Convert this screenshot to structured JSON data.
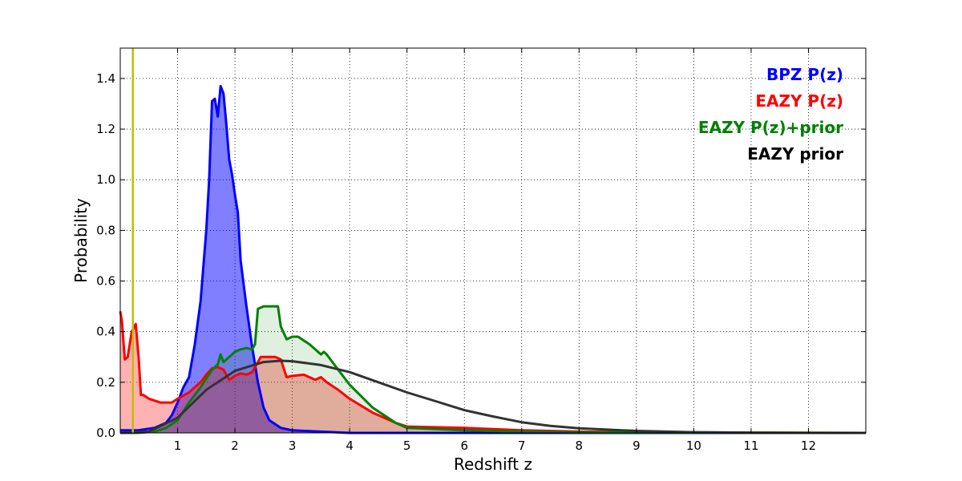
{
  "chart_data": {
    "type": "area",
    "xlabel": "Redshift z",
    "ylabel": "Probability",
    "xlim": [
      0,
      13
    ],
    "ylim": [
      0,
      1.52
    ],
    "x_ticks": [
      1,
      2,
      3,
      4,
      5,
      6,
      7,
      8,
      9,
      10,
      11,
      12
    ],
    "y_ticks": [
      0.0,
      0.2,
      0.4,
      0.6,
      0.8,
      1.0,
      1.2,
      1.4
    ],
    "x_tick_labels": [
      "1",
      "2",
      "3",
      "4",
      "5",
      "6",
      "7",
      "8",
      "9",
      "10",
      "11",
      "12"
    ],
    "y_tick_labels": [
      "0.0",
      "0.2",
      "0.4",
      "0.6",
      "0.8",
      "1.0",
      "1.2",
      "1.4"
    ],
    "grid": true,
    "legend_position": "top-right",
    "vertical_line": {
      "x": 0.22,
      "color": "#bfbf00"
    },
    "series": [
      {
        "name": "BPZ P(z)",
        "color": "#0000ff",
        "fill": "#0000ff",
        "fill_opacity": 0.5,
        "x": [
          0,
          0.3,
          0.6,
          0.8,
          0.9,
          1.0,
          1.1,
          1.2,
          1.3,
          1.4,
          1.5,
          1.55,
          1.6,
          1.65,
          1.7,
          1.75,
          1.8,
          1.85,
          1.9,
          1.95,
          2.0,
          2.05,
          2.1,
          2.2,
          2.3,
          2.4,
          2.5,
          2.6,
          2.8,
          3.0,
          4,
          6,
          13
        ],
        "y": [
          0.01,
          0.01,
          0.02,
          0.04,
          0.07,
          0.12,
          0.18,
          0.22,
          0.35,
          0.52,
          0.8,
          1.0,
          1.31,
          1.32,
          1.25,
          1.37,
          1.34,
          1.22,
          1.08,
          1.02,
          0.94,
          0.87,
          0.68,
          0.5,
          0.34,
          0.2,
          0.1,
          0.05,
          0.02,
          0.01,
          0.0,
          0.0,
          0.0
        ]
      },
      {
        "name": "EAZY P(z)",
        "color": "#ff0000",
        "fill": "#ff0000",
        "fill_opacity": 0.3,
        "x": [
          0,
          0.03,
          0.08,
          0.13,
          0.2,
          0.27,
          0.32,
          0.36,
          0.4,
          0.5,
          0.7,
          0.9,
          1.0,
          1.2,
          1.4,
          1.5,
          1.6,
          1.7,
          1.8,
          1.9,
          2.0,
          2.1,
          2.2,
          2.3,
          2.4,
          2.45,
          2.5,
          2.6,
          2.7,
          2.8,
          2.9,
          3.0,
          3.2,
          3.4,
          3.5,
          3.6,
          3.8,
          4.0,
          4.4,
          4.8,
          5.0,
          6.0,
          7.0,
          8.0,
          9.0,
          10,
          11,
          13
        ],
        "y": [
          0.48,
          0.44,
          0.29,
          0.3,
          0.4,
          0.43,
          0.3,
          0.15,
          0.15,
          0.135,
          0.12,
          0.12,
          0.135,
          0.16,
          0.2,
          0.23,
          0.255,
          0.26,
          0.25,
          0.21,
          0.225,
          0.235,
          0.23,
          0.24,
          0.28,
          0.3,
          0.3,
          0.3,
          0.3,
          0.29,
          0.22,
          0.225,
          0.23,
          0.21,
          0.22,
          0.2,
          0.17,
          0.135,
          0.08,
          0.04,
          0.025,
          0.02,
          0.01,
          0.005,
          0.003,
          0.002,
          0.001,
          0.0
        ]
      },
      {
        "name": "EAZY P(z)+prior",
        "color": "#008000",
        "fill": "#008000",
        "fill_opacity": 0.12,
        "x": [
          0,
          0.3,
          0.6,
          0.8,
          1.0,
          1.2,
          1.4,
          1.6,
          1.7,
          1.75,
          1.8,
          1.9,
          2.0,
          2.1,
          2.2,
          2.3,
          2.35,
          2.4,
          2.45,
          2.5,
          2.6,
          2.75,
          2.8,
          2.9,
          3.0,
          3.1,
          3.3,
          3.5,
          3.55,
          3.6,
          3.8,
          4.0,
          4.4,
          4.8,
          5.0,
          6.0,
          7.0,
          8.0,
          13
        ],
        "y": [
          0.0,
          0.0,
          0.005,
          0.02,
          0.05,
          0.12,
          0.18,
          0.25,
          0.27,
          0.31,
          0.28,
          0.3,
          0.32,
          0.33,
          0.335,
          0.33,
          0.35,
          0.49,
          0.495,
          0.5,
          0.5,
          0.5,
          0.42,
          0.37,
          0.38,
          0.38,
          0.35,
          0.31,
          0.32,
          0.31,
          0.25,
          0.19,
          0.1,
          0.04,
          0.02,
          0.01,
          0.005,
          0.002,
          0.0
        ]
      },
      {
        "name": "EAZY prior",
        "color": "#333333",
        "fill": "none",
        "fill_opacity": 0,
        "x": [
          0,
          0.5,
          1.0,
          1.5,
          2.0,
          2.5,
          2.8,
          3.0,
          3.5,
          4.0,
          4.5,
          5.0,
          5.5,
          6.0,
          6.5,
          7.0,
          7.5,
          8.0,
          9.0,
          10,
          11,
          12,
          13
        ],
        "y": [
          0.0,
          0.005,
          0.06,
          0.17,
          0.245,
          0.28,
          0.285,
          0.283,
          0.268,
          0.24,
          0.2,
          0.16,
          0.125,
          0.09,
          0.065,
          0.042,
          0.028,
          0.018,
          0.008,
          0.003,
          0.001,
          0.0,
          0.0
        ]
      }
    ]
  }
}
